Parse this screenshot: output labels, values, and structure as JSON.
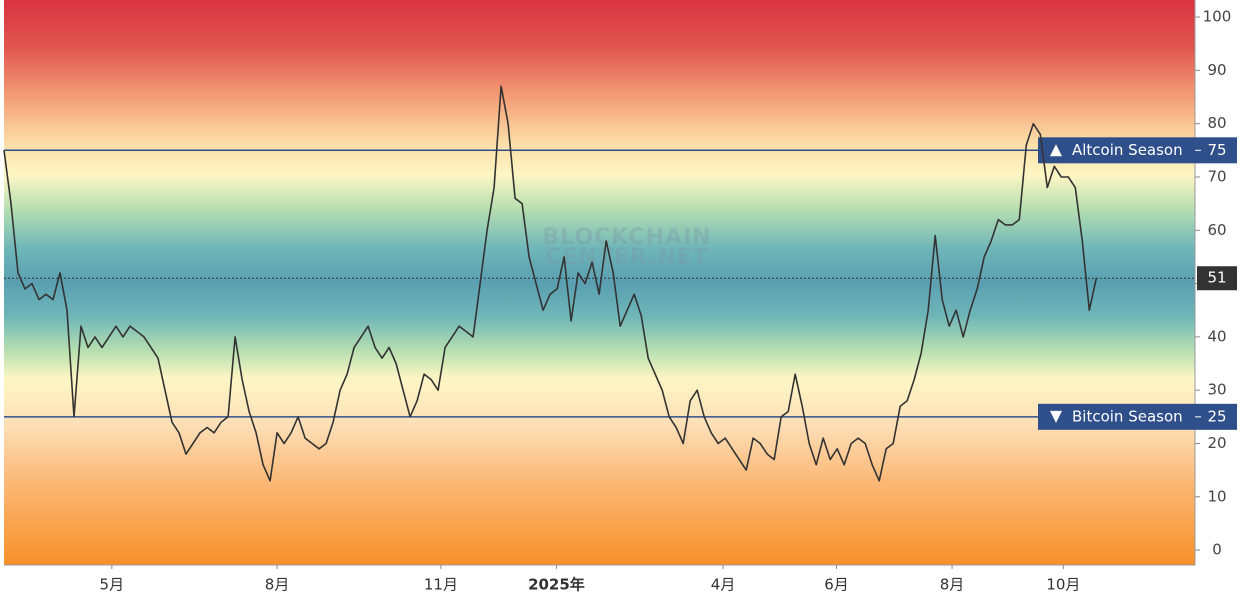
{
  "chart_data": {
    "type": "line",
    "watermark": [
      "BLOCKCHAIN",
      "CENTER.NET"
    ],
    "values": [
      75,
      65,
      52,
      49,
      50,
      47,
      48,
      47,
      52,
      45,
      25,
      42,
      38,
      40,
      38,
      40,
      42,
      40,
      42,
      41,
      40,
      38,
      36,
      30,
      24,
      22,
      18,
      20,
      22,
      23,
      22,
      24,
      25,
      40,
      32,
      26,
      22,
      16,
      13,
      22,
      20,
      22,
      25,
      21,
      20,
      19,
      20,
      24,
      30,
      33,
      38,
      40,
      42,
      38,
      36,
      38,
      35,
      30,
      25,
      28,
      33,
      32,
      30,
      38,
      40,
      42,
      41,
      40,
      50,
      60,
      68,
      87,
      80,
      66,
      65,
      55,
      50,
      45,
      48,
      49,
      55,
      43,
      52,
      50,
      54,
      48,
      58,
      52,
      42,
      45,
      48,
      44,
      36,
      33,
      30,
      25,
      23,
      20,
      28,
      30,
      25,
      22,
      20,
      21,
      19,
      17,
      15,
      21,
      20,
      18,
      17,
      25,
      26,
      33,
      27,
      20,
      16,
      21,
      17,
      19,
      16,
      20,
      21,
      20,
      16,
      13,
      19,
      20,
      27,
      28,
      32,
      37,
      45,
      59,
      47,
      42,
      45,
      40,
      45,
      49,
      55,
      58,
      62,
      61,
      61,
      62,
      76,
      80,
      78,
      68,
      72,
      70,
      70,
      68,
      58,
      45,
      51
    ],
    "color": "#333333",
    "xlim": [
      0,
      170.1
    ],
    "xticks": [
      {
        "value": 15.4,
        "label": "5月"
      },
      {
        "value": 39,
        "label": "8月"
      },
      {
        "value": 62.4,
        "label": "11月"
      },
      {
        "value": 78.9,
        "label": "2025年"
      },
      {
        "value": 102.7,
        "label": "4月"
      },
      {
        "value": 118.9,
        "label": "6月"
      },
      {
        "value": 135.4,
        "label": "8月"
      },
      {
        "value": 151.3,
        "label": "10月"
      }
    ],
    "ylim": [
      -2.8,
      103.2
    ],
    "yticks": [
      0,
      10,
      20,
      30,
      40,
      50,
      60,
      70,
      80,
      90,
      100
    ],
    "thresholds": [
      {
        "name": "Altcoin Season",
        "value": 75,
        "direction": "up",
        "color": "#2f4f8a"
      },
      {
        "name": "Bitcoin Season",
        "value": 25,
        "direction": "down",
        "color": "#2f4f8a"
      }
    ]
  }
}
